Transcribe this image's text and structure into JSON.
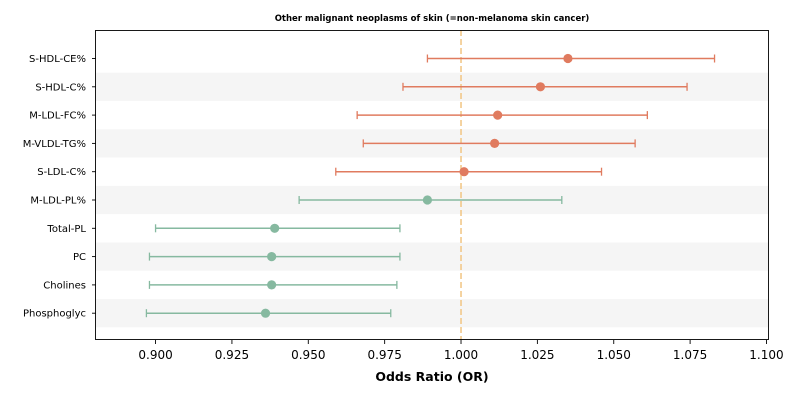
{
  "chart_data": {
    "type": "forest",
    "title": "Other malignant neoplasms of skin (=non-melanoma skin cancer)",
    "xlabel": "Odds Ratio (OR)",
    "xlim": [
      0.8805,
      1.1005
    ],
    "xticks": [
      "0.900",
      "0.925",
      "0.950",
      "0.975",
      "1.000",
      "1.025",
      "1.050",
      "1.075",
      "1.100"
    ],
    "xtick_values": [
      0.9,
      0.925,
      0.95,
      0.975,
      1.0,
      1.025,
      1.05,
      1.075,
      1.1
    ],
    "reference_line": 1.0,
    "colors": {
      "positive": "#e07b5f",
      "negative": "#86b9a0",
      "reference": "#f2c98a",
      "band": "#f5f5f5"
    },
    "rows": [
      {
        "label": "S-HDL-CE%",
        "or": 1.035,
        "lo": 0.989,
        "hi": 1.083
      },
      {
        "label": "S-HDL-C%",
        "or": 1.026,
        "lo": 0.981,
        "hi": 1.074
      },
      {
        "label": "M-LDL-FC%",
        "or": 1.012,
        "lo": 0.966,
        "hi": 1.061
      },
      {
        "label": "M-VLDL-TG%",
        "or": 1.011,
        "lo": 0.968,
        "hi": 1.057
      },
      {
        "label": "S-LDL-C%",
        "or": 1.001,
        "lo": 0.959,
        "hi": 1.046
      },
      {
        "label": "M-LDL-PL%",
        "or": 0.989,
        "lo": 0.947,
        "hi": 1.033
      },
      {
        "label": "Total-PL",
        "or": 0.939,
        "lo": 0.9,
        "hi": 0.98
      },
      {
        "label": "PC",
        "or": 0.938,
        "lo": 0.898,
        "hi": 0.98
      },
      {
        "label": "Cholines",
        "or": 0.938,
        "lo": 0.898,
        "hi": 0.979
      },
      {
        "label": "Phosphoglyc",
        "or": 0.936,
        "lo": 0.897,
        "hi": 0.977
      }
    ]
  }
}
